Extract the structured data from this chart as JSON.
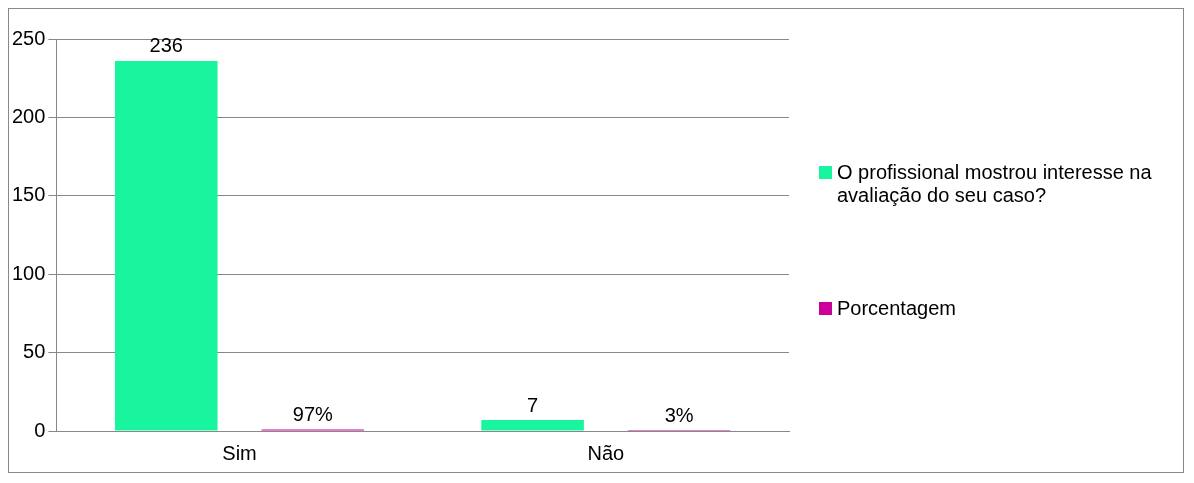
{
  "chart_data": {
    "type": "bar",
    "categories": [
      "Sim",
      "Não"
    ],
    "series": [
      {
        "name": "O profissional mostrou interesse na avaliação do seu caso?",
        "color": "#19f59e",
        "values": [
          236,
          7
        ],
        "value_labels": [
          "236",
          "7"
        ]
      },
      {
        "name": "Porcentagem",
        "color": "#cc0099",
        "values": [
          0.97,
          0.03
        ],
        "value_labels": [
          "97%",
          "3%"
        ]
      }
    ],
    "ylim": [
      0,
      250
    ],
    "yticks": [
      0,
      50,
      100,
      150,
      200,
      250
    ],
    "grid": "y",
    "legend": "right"
  }
}
